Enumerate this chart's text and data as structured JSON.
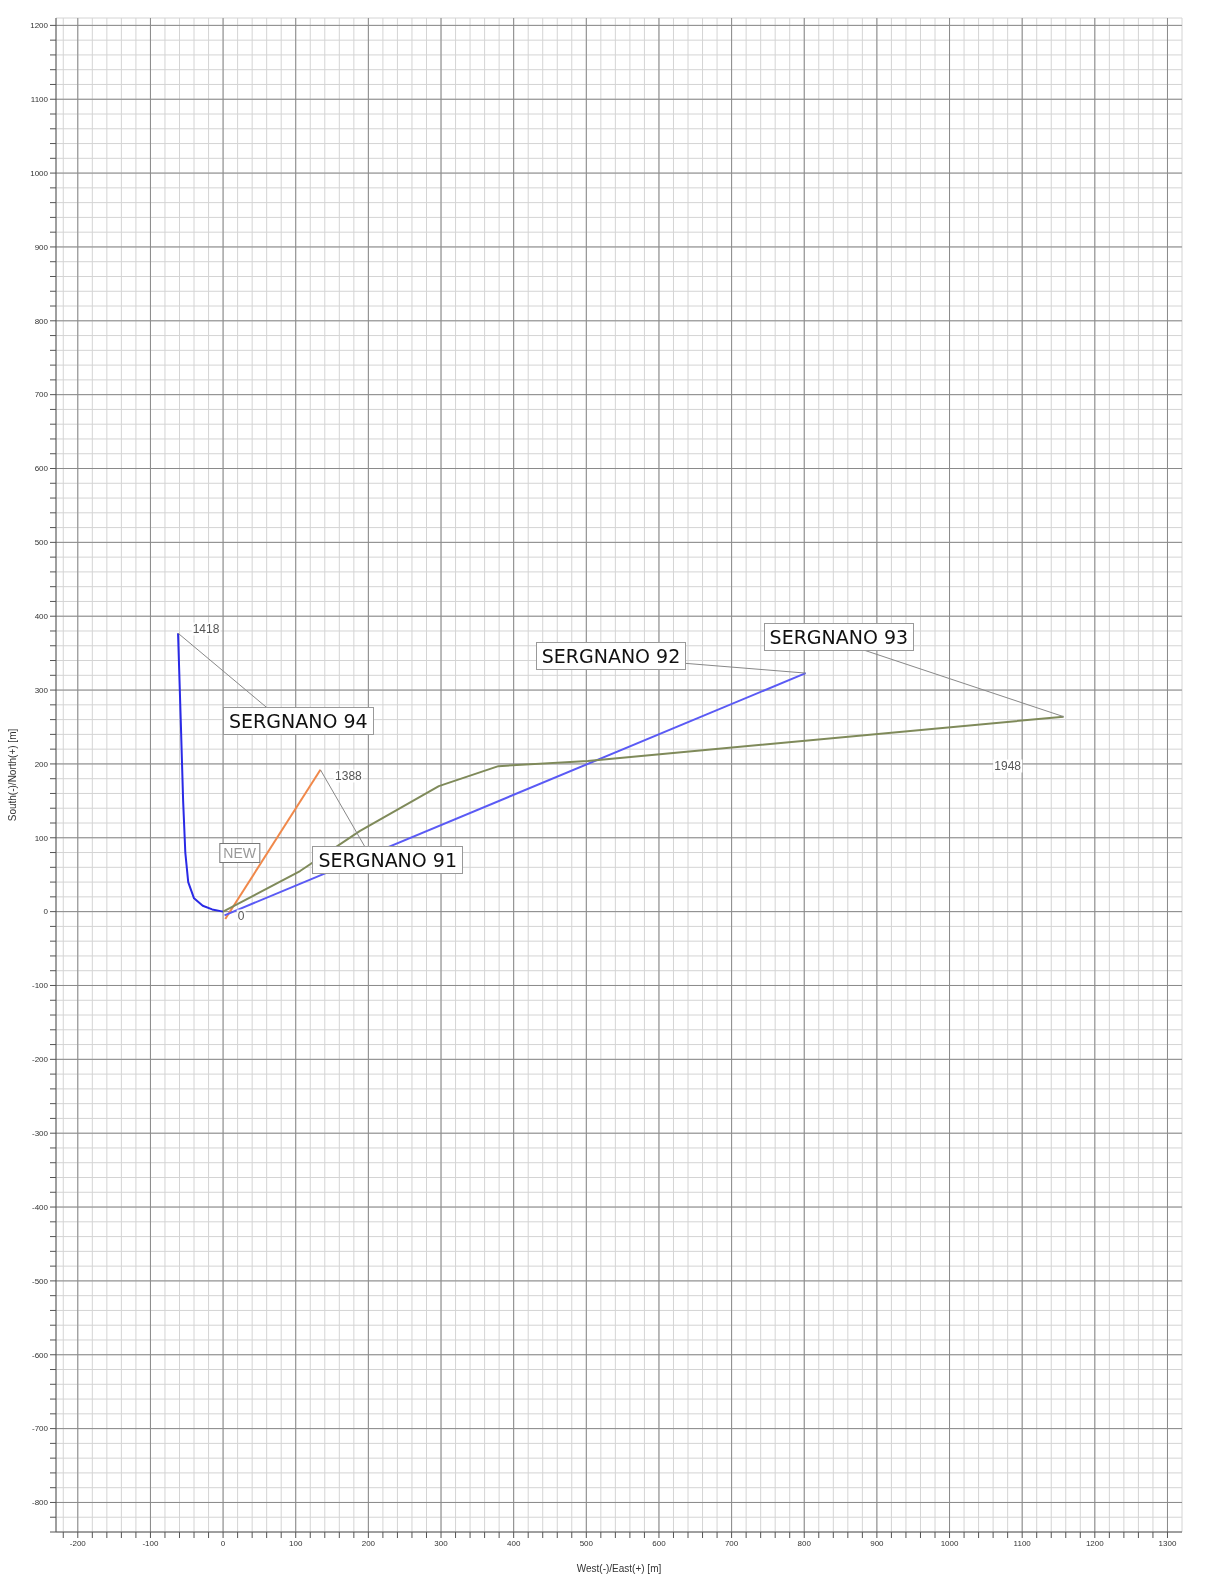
{
  "chart_data": {
    "type": "line",
    "xlabel": "West(-)/East(+) [m]",
    "ylabel": "South(-)/North(+) [m]",
    "xlim": [
      -230,
      1320
    ],
    "ylim": [
      -840,
      1210
    ],
    "xticks": [
      {
        "value": -220,
        "label": null
      },
      -200,
      {
        "value": -180,
        "label": null
      },
      {
        "value": -160,
        "label": null
      },
      {
        "value": -140,
        "label": null
      },
      {
        "value": -120,
        "label": null
      },
      -100,
      {
        "value": -80,
        "label": null
      },
      {
        "value": -60,
        "label": null
      },
      {
        "value": -40,
        "label": null
      },
      {
        "value": -20,
        "label": null
      },
      0,
      {
        "value": 20,
        "label": null
      },
      {
        "value": 40,
        "label": null
      },
      {
        "value": 60,
        "label": null
      },
      {
        "value": 80,
        "label": null
      },
      100,
      {
        "value": 120,
        "label": null
      },
      {
        "value": 140,
        "label": null
      },
      {
        "value": 160,
        "label": null
      },
      {
        "value": 180,
        "label": null
      },
      200,
      {
        "value": 220,
        "label": null
      },
      {
        "value": 240,
        "label": null
      },
      {
        "value": 260,
        "label": null
      },
      {
        "value": 280,
        "label": null
      },
      300,
      {
        "value": 320,
        "label": null
      },
      {
        "value": 340,
        "label": null
      },
      {
        "value": 360,
        "label": null
      },
      {
        "value": 380,
        "label": null
      },
      400,
      {
        "value": 420,
        "label": null
      },
      {
        "value": 440,
        "label": null
      },
      {
        "value": 460,
        "label": null
      },
      {
        "value": 480,
        "label": null
      },
      500,
      {
        "value": 520,
        "label": null
      },
      {
        "value": 540,
        "label": null
      },
      {
        "value": 560,
        "label": null
      },
      {
        "value": 580,
        "label": null
      },
      600,
      {
        "value": 620,
        "label": null
      },
      {
        "value": 640,
        "label": null
      },
      {
        "value": 660,
        "label": null
      },
      {
        "value": 680,
        "label": null
      },
      700,
      {
        "value": 720,
        "label": null
      },
      {
        "value": 740,
        "label": null
      },
      {
        "value": 760,
        "label": null
      },
      {
        "value": 780,
        "label": null
      },
      800,
      {
        "value": 820,
        "label": null
      },
      {
        "value": 840,
        "label": null
      },
      {
        "value": 860,
        "label": null
      },
      {
        "value": 880,
        "label": null
      },
      900,
      {
        "value": 920,
        "label": null
      },
      {
        "value": 940,
        "label": null
      },
      {
        "value": 960,
        "label": null
      },
      {
        "value": 980,
        "label": null
      },
      1000,
      {
        "value": 1020,
        "label": null
      },
      {
        "value": 1040,
        "label": null
      },
      {
        "value": 1060,
        "label": null
      },
      {
        "value": 1080,
        "label": null
      },
      1100,
      {
        "value": 1120,
        "label": null
      },
      {
        "value": 1140,
        "label": null
      },
      {
        "value": 1160,
        "label": null
      },
      {
        "value": 1180,
        "label": null
      },
      1200,
      {
        "value": 1220,
        "label": null
      },
      {
        "value": 1240,
        "label": null
      },
      {
        "value": 1260,
        "label": null
      },
      {
        "value": 1280,
        "label": null
      },
      1300
    ],
    "yticks": [
      {
        "value": -840,
        "label": null
      },
      {
        "value": -820,
        "label": null
      },
      -800,
      {
        "value": -780,
        "label": null
      },
      {
        "value": -760,
        "label": null
      },
      {
        "value": -740,
        "label": null
      },
      {
        "value": -720,
        "label": null
      },
      -700,
      {
        "value": -680,
        "label": null
      },
      {
        "value": -660,
        "label": null
      },
      {
        "value": -640,
        "label": null
      },
      {
        "value": -620,
        "label": null
      },
      -600,
      {
        "value": -580,
        "label": null
      },
      {
        "value": -560,
        "label": null
      },
      {
        "value": -540,
        "label": null
      },
      {
        "value": -520,
        "label": null
      },
      -500,
      {
        "value": -480,
        "label": null
      },
      {
        "value": -460,
        "label": null
      },
      {
        "value": -440,
        "label": null
      },
      {
        "value": -420,
        "label": null
      },
      -400,
      {
        "value": -380,
        "label": null
      },
      {
        "value": -360,
        "label": null
      },
      {
        "value": -340,
        "label": null
      },
      {
        "value": -320,
        "label": null
      },
      -300,
      {
        "value": -280,
        "label": null
      },
      {
        "value": -260,
        "label": null
      },
      {
        "value": -240,
        "label": null
      },
      {
        "value": -220,
        "label": null
      },
      -200,
      {
        "value": -180,
        "label": null
      },
      {
        "value": -160,
        "label": null
      },
      {
        "value": -140,
        "label": null
      },
      {
        "value": -120,
        "label": null
      },
      -100,
      {
        "value": -80,
        "label": null
      },
      {
        "value": -60,
        "label": null
      },
      {
        "value": -40,
        "label": null
      },
      {
        "value": -20,
        "label": null
      },
      0,
      {
        "value": 20,
        "label": null
      },
      {
        "value": 40,
        "label": null
      },
      {
        "value": 60,
        "label": null
      },
      {
        "value": 80,
        "label": null
      },
      100,
      {
        "value": 120,
        "label": null
      },
      {
        "value": 140,
        "label": null
      },
      {
        "value": 160,
        "label": null
      },
      {
        "value": 180,
        "label": null
      },
      200,
      {
        "value": 220,
        "label": null
      },
      {
        "value": 240,
        "label": null
      },
      {
        "value": 260,
        "label": null
      },
      {
        "value": 280,
        "label": null
      },
      300,
      {
        "value": 320,
        "label": null
      },
      {
        "value": 340,
        "label": null
      },
      {
        "value": 360,
        "label": null
      },
      {
        "value": 380,
        "label": null
      },
      400,
      {
        "value": 420,
        "label": null
      },
      {
        "value": 440,
        "label": null
      },
      {
        "value": 460,
        "label": null
      },
      {
        "value": 480,
        "label": null
      },
      500,
      {
        "value": 520,
        "label": null
      },
      {
        "value": 540,
        "label": null
      },
      {
        "value": 560,
        "label": null
      },
      {
        "value": 580,
        "label": null
      },
      600,
      {
        "value": 620,
        "label": null
      },
      {
        "value": 640,
        "label": null
      },
      {
        "value": 660,
        "label": null
      },
      {
        "value": 680,
        "label": null
      },
      700,
      {
        "value": 720,
        "label": null
      },
      {
        "value": 740,
        "label": null
      },
      {
        "value": 760,
        "label": null
      },
      {
        "value": 780,
        "label": null
      },
      800,
      {
        "value": 820,
        "label": null
      },
      {
        "value": 840,
        "label": null
      },
      {
        "value": 860,
        "label": null
      },
      {
        "value": 880,
        "label": null
      },
      900,
      {
        "value": 920,
        "label": null
      },
      {
        "value": 940,
        "label": null
      },
      {
        "value": 960,
        "label": null
      },
      {
        "value": 980,
        "label": null
      },
      1000,
      {
        "value": 1020,
        "label": null
      },
      {
        "value": 1040,
        "label": null
      },
      {
        "value": 1060,
        "label": null
      },
      {
        "value": 1080,
        "label": null
      },
      1100,
      {
        "value": 1120,
        "label": null
      },
      {
        "value": 1140,
        "label": null
      },
      {
        "value": 1160,
        "label": null
      },
      {
        "value": 1180,
        "label": null
      },
      1200
    ],
    "grid": true,
    "marker": "none",
    "line_style": "solid",
    "series": [
      {
        "name": "SERGNANO 94",
        "color": "#2a2ae6",
        "x": [
          0,
          -15,
          -28,
          -40,
          -48,
          -52,
          -55,
          -58,
          -62
        ],
        "values": [
          0,
          3,
          8,
          18,
          40,
          80,
          150,
          250,
          377
        ]
      },
      {
        "name": "SERGNANO 91",
        "color": "#f0884a",
        "x": [
          3,
          134
        ],
        "values": [
          -10,
          192
        ]
      },
      {
        "name": "SERGNANO 92",
        "color": "#5a5af5",
        "x": [
          2,
          802
        ],
        "values": [
          -5,
          323
        ]
      },
      {
        "name": "SERGNANO 93",
        "color": "#7f8a5a",
        "x": [
          0,
          106,
          188,
          297,
          379,
          502,
          1157
        ],
        "values": [
          0,
          55,
          109,
          170,
          197,
          204,
          264
        ]
      }
    ],
    "annotations": [
      {
        "text": "1418",
        "x": -62,
        "y": 377
      },
      {
        "text": "1388",
        "x": 134,
        "y": 192
      },
      {
        "text": "0",
        "x": 0,
        "y": 0
      },
      "1948",
      "NEW"
    ]
  }
}
